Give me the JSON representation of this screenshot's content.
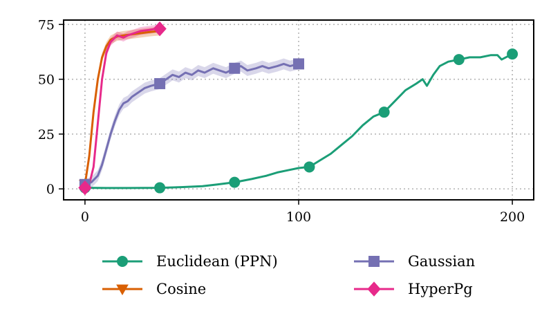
{
  "chart_data": {
    "type": "line",
    "title": "",
    "xlabel": "",
    "ylabel": "",
    "xlim": [
      -10,
      210
    ],
    "ylim": [
      -5,
      77
    ],
    "xticks": [
      0,
      100,
      200
    ],
    "yticks": [
      0,
      25,
      50,
      75
    ],
    "grid": true,
    "legend_position": "bottom",
    "series": [
      {
        "name": "Euclidean (PPN)",
        "color": "#1b9e77",
        "marker": "circle",
        "x": [
          0,
          10,
          20,
          35,
          45,
          55,
          62,
          70,
          78,
          85,
          90,
          95,
          100,
          105,
          110,
          115,
          120,
          125,
          130,
          135,
          140,
          145,
          150,
          155,
          158,
          160,
          163,
          166,
          170,
          175,
          180,
          185,
          190,
          193,
          195,
          200
        ],
        "y": [
          0.5,
          0.4,
          0.4,
          0.5,
          0.8,
          1.2,
          2,
          3,
          4.5,
          6,
          7.5,
          8.5,
          9.5,
          10,
          13,
          16,
          20,
          24,
          29,
          33,
          35,
          40,
          45,
          48,
          50,
          47,
          52,
          56,
          58,
          59,
          60,
          60,
          61,
          61,
          59,
          61.5
        ],
        "markers_x": [
          0,
          35,
          70,
          105,
          140,
          175,
          200
        ],
        "markers_y": [
          0.5,
          0.5,
          3,
          10,
          35,
          59,
          61.5
        ]
      },
      {
        "name": "Cosine",
        "color": "#d95f02",
        "marker": "triangle-down",
        "x": [
          0,
          2,
          4,
          6,
          8,
          10,
          12,
          15,
          18,
          22,
          26,
          30,
          35
        ],
        "y": [
          2,
          15,
          35,
          50,
          60,
          65,
          68,
          69.5,
          70,
          70.5,
          71,
          71.5,
          72
        ],
        "band": 2,
        "markers_x": [
          0
        ],
        "markers_y": [
          2
        ]
      },
      {
        "name": "Gaussian",
        "color": "#7570b3",
        "marker": "square",
        "x": [
          0,
          3,
          6,
          8,
          10,
          12,
          14,
          16,
          18,
          20,
          22,
          25,
          28,
          31,
          35,
          38,
          41,
          44,
          47,
          50,
          53,
          56,
          60,
          63,
          66,
          70,
          73,
          76,
          80,
          83,
          86,
          90,
          93,
          96,
          100
        ],
        "y": [
          2,
          3,
          6,
          11,
          18,
          25,
          31,
          36,
          39,
          40,
          42,
          44,
          46,
          47,
          48,
          50,
          52,
          51,
          53,
          52,
          54,
          53,
          55,
          54,
          53,
          55,
          56,
          54,
          55,
          56,
          55,
          56,
          57,
          56,
          57
        ],
        "band": 2.5,
        "markers_x": [
          0,
          35,
          70,
          100
        ],
        "markers_y": [
          2,
          48,
          55,
          57
        ]
      },
      {
        "name": "HyperPg",
        "color": "#e7298a",
        "marker": "diamond",
        "x": [
          0,
          2,
          4,
          6,
          8,
          10,
          12,
          15,
          18,
          20,
          23,
          26,
          30,
          33,
          35
        ],
        "y": [
          0.5,
          2,
          10,
          30,
          50,
          62,
          67,
          70,
          69,
          70,
          71,
          72,
          72.5,
          73,
          73
        ],
        "band": 1.8,
        "markers_x": [
          0,
          35
        ],
        "markers_y": [
          0.5,
          73
        ]
      }
    ]
  }
}
